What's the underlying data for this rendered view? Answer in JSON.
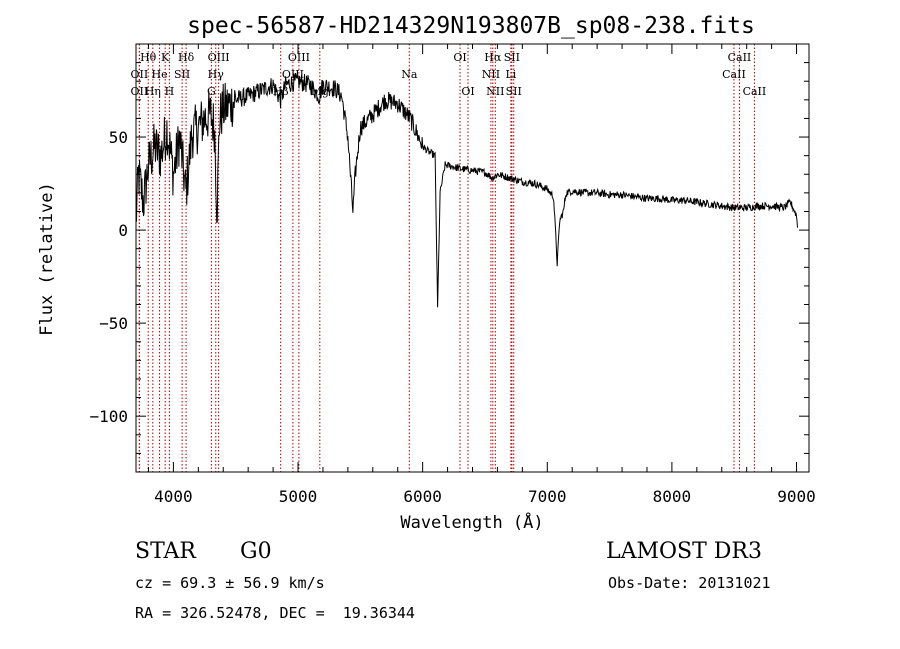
{
  "chart_data": {
    "type": "line",
    "title": "spec-56587-HD214329N193807B_sp08-238.fits",
    "xlabel": "Wavelength (Å)",
    "ylabel": "Flux (relative)",
    "xlim": [
      3700,
      9100
    ],
    "ylim": [
      -130,
      100
    ],
    "x_ticks": [
      4000,
      5000,
      6000,
      7000,
      8000,
      9000
    ],
    "x_tick_labels": [
      "4000",
      "5000",
      "6000",
      "7000",
      "8000",
      "9000"
    ],
    "y_ticks": [
      -100,
      -50,
      0,
      50
    ],
    "y_tick_labels": [
      "−100",
      "−50",
      "0",
      "50"
    ],
    "grid": false,
    "line_color": "#000000",
    "marker_color": "#b00000",
    "spectrum_anchors": [
      [
        3700,
        5
      ],
      [
        3720,
        30
      ],
      [
        3760,
        15
      ],
      [
        3800,
        35
      ],
      [
        3850,
        45
      ],
      [
        3900,
        40
      ],
      [
        3950,
        55
      ],
      [
        4000,
        30
      ],
      [
        4050,
        50
      ],
      [
        4100,
        20
      ],
      [
        4150,
        52
      ],
      [
        4200,
        55
      ],
      [
        4250,
        60
      ],
      [
        4300,
        62
      ],
      [
        4330,
        55
      ],
      [
        4350,
        10
      ],
      [
        4370,
        60
      ],
      [
        4400,
        65
      ],
      [
        4500,
        70
      ],
      [
        4600,
        72
      ],
      [
        4700,
        75
      ],
      [
        4800,
        78
      ],
      [
        4860,
        70
      ],
      [
        4900,
        78
      ],
      [
        5000,
        80
      ],
      [
        5100,
        78
      ],
      [
        5170,
        72
      ],
      [
        5200,
        78
      ],
      [
        5300,
        76
      ],
      [
        5350,
        72
      ],
      [
        5400,
        50
      ],
      [
        5440,
        10
      ],
      [
        5460,
        30
      ],
      [
        5500,
        55
      ],
      [
        5600,
        62
      ],
      [
        5700,
        70
      ],
      [
        5800,
        68
      ],
      [
        5900,
        60
      ],
      [
        6000,
        45
      ],
      [
        6050,
        42
      ],
      [
        6100,
        40
      ],
      [
        6120,
        -42
      ],
      [
        6140,
        20
      ],
      [
        6180,
        35
      ],
      [
        6250,
        34
      ],
      [
        6300,
        33
      ],
      [
        6400,
        32
      ],
      [
        6500,
        31
      ],
      [
        6560,
        28
      ],
      [
        6600,
        30
      ],
      [
        6700,
        28
      ],
      [
        6800,
        26
      ],
      [
        6900,
        25
      ],
      [
        7000,
        22
      ],
      [
        7050,
        18
      ],
      [
        7080,
        -18
      ],
      [
        7100,
        5
      ],
      [
        7130,
        10
      ],
      [
        7150,
        20
      ],
      [
        7200,
        21
      ],
      [
        7300,
        20
      ],
      [
        7400,
        20
      ],
      [
        7500,
        19
      ],
      [
        7600,
        19
      ],
      [
        7700,
        18
      ],
      [
        7800,
        17
      ],
      [
        7900,
        17
      ],
      [
        8000,
        16
      ],
      [
        8100,
        16
      ],
      [
        8200,
        15
      ],
      [
        8300,
        14
      ],
      [
        8400,
        13
      ],
      [
        8500,
        12
      ],
      [
        8600,
        12
      ],
      [
        8700,
        13
      ],
      [
        8800,
        13
      ],
      [
        8900,
        12
      ],
      [
        8950,
        15
      ],
      [
        9000,
        8
      ],
      [
        9010,
        0
      ]
    ],
    "line_markers": [
      {
        "label": "Hθ",
        "wavelength": 3798,
        "row": 1
      },
      {
        "label": "OII",
        "wavelength": 3727,
        "row": 2
      },
      {
        "label": "OII",
        "wavelength": 3727,
        "row": 3
      },
      {
        "label": "Hη",
        "wavelength": 3835,
        "row": 3
      },
      {
        "label": "He",
        "wavelength": 3889,
        "row": 2
      },
      {
        "label": "K",
        "wavelength": 3934,
        "row": 1
      },
      {
        "label": "SII",
        "wavelength": 4070,
        "row": 2
      },
      {
        "label": "H",
        "wavelength": 3968,
        "row": 3
      },
      {
        "label": "Hδ",
        "wavelength": 4102,
        "row": 1
      },
      {
        "label": "OIII",
        "wavelength": 4363,
        "row": 1
      },
      {
        "label": "Hγ",
        "wavelength": 4340,
        "row": 2
      },
      {
        "label": "G",
        "wavelength": 4305,
        "row": 3
      },
      {
        "label": "OIII",
        "wavelength": 5007,
        "row": 1
      },
      {
        "label": "OIII",
        "wavelength": 4959,
        "row": 2
      },
      {
        "label": "Hβ",
        "wavelength": 4861,
        "row": 3
      },
      {
        "label": "Mg",
        "wavelength": 5175,
        "row": 3
      },
      {
        "label": "Na",
        "wavelength": 5893,
        "row": 2
      },
      {
        "label": "OI",
        "wavelength": 6300,
        "row": 1
      },
      {
        "label": "OI",
        "wavelength": 6364,
        "row": 3
      },
      {
        "label": "Hα",
        "wavelength": 6563,
        "row": 1
      },
      {
        "label": "SII",
        "wavelength": 6716,
        "row": 1
      },
      {
        "label": "NII",
        "wavelength": 6548,
        "row": 2
      },
      {
        "label": "Li",
        "wavelength": 6708,
        "row": 2
      },
      {
        "label": "NII",
        "wavelength": 6583,
        "row": 3
      },
      {
        "label": "SII",
        "wavelength": 6731,
        "row": 3
      },
      {
        "label": "CaII",
        "wavelength": 8542,
        "row": 1
      },
      {
        "label": "CaII",
        "wavelength": 8498,
        "row": 2
      },
      {
        "label": "CaII",
        "wavelength": 8662,
        "row": 3
      }
    ]
  },
  "info": {
    "object_type": "STAR",
    "subclass": "G0",
    "survey": "LAMOST DR3",
    "redshift": "cz = 69.3 ± 56.9 km/s",
    "obs_date": "Obs-Date: 20131021",
    "coords": "RA = 326.52478, DEC =  19.36344"
  }
}
